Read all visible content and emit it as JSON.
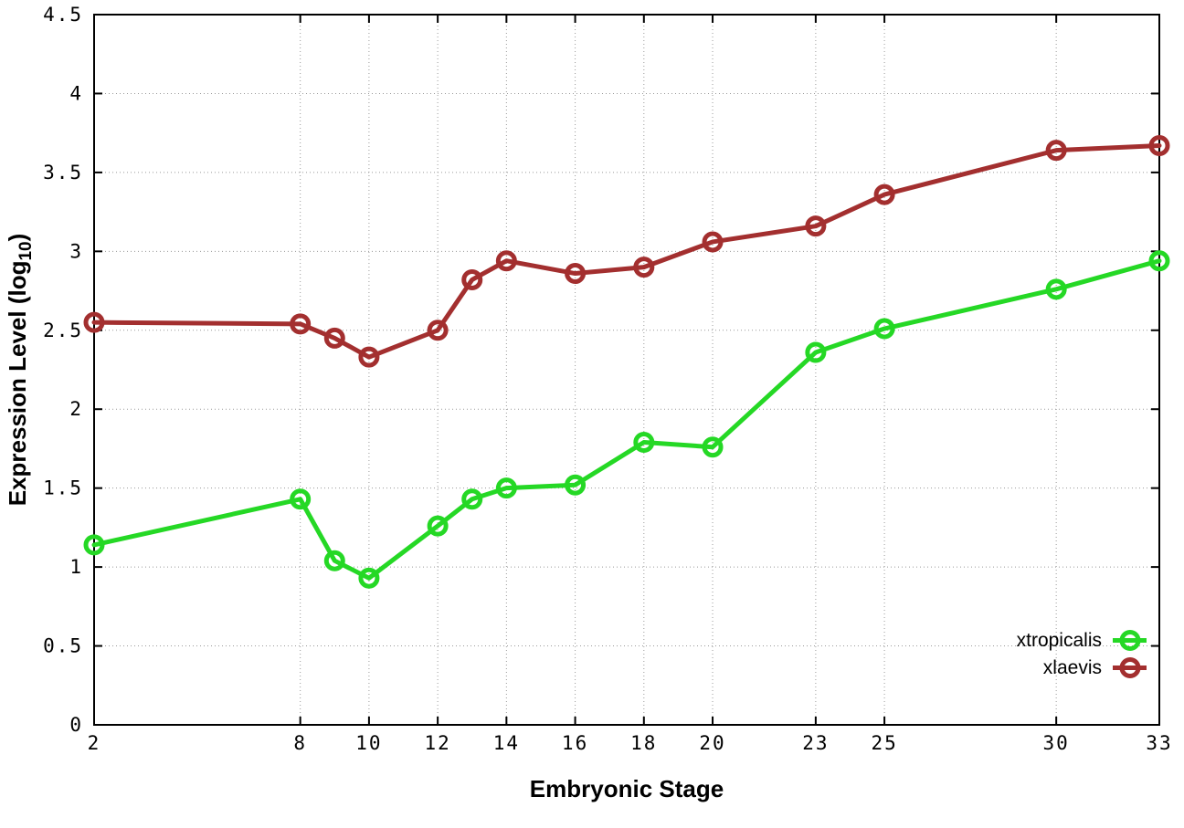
{
  "figure": {
    "background": "#ffffff",
    "border_color": "#000000",
    "grid_color": "#9a9a9a"
  },
  "chart_data": {
    "type": "line",
    "title": "",
    "xlabel": "Embryonic Stage",
    "ylabel_prefix": "Expression Level (log",
    "ylabel_sub": "10",
    "ylabel_suffix": ")",
    "xlim": [
      2,
      33
    ],
    "ylim": [
      0,
      4.5
    ],
    "grid": true,
    "legend_position": "bottom-right",
    "marker": "open-circle",
    "x": [
      2,
      8,
      9,
      10,
      12,
      13,
      14,
      16,
      18,
      20,
      23,
      25,
      30,
      33
    ],
    "x_tick_values": [
      2,
      8,
      10,
      12,
      14,
      16,
      18,
      20,
      23,
      25,
      30,
      33
    ],
    "x_tick_labels": [
      "2",
      "8",
      "10",
      "12",
      "14",
      "16",
      "18",
      "20",
      "23",
      "25",
      "30",
      "33"
    ],
    "y_tick_values": [
      0,
      0.5,
      1,
      1.5,
      2,
      2.5,
      3,
      3.5,
      4,
      4.5
    ],
    "y_tick_labels": [
      "0",
      "0.5",
      "1",
      "1.5",
      "2",
      "2.5",
      "3",
      "3.5",
      "4",
      "4.5"
    ],
    "series": [
      {
        "name": "xtropicalis",
        "color": "#25D825",
        "values": [
          1.14,
          1.43,
          1.04,
          0.93,
          1.26,
          1.43,
          1.5,
          1.52,
          1.79,
          1.76,
          2.36,
          2.51,
          2.76,
          2.94
        ]
      },
      {
        "name": "xlaevis",
        "color": "#A32F2F",
        "values": [
          2.55,
          2.54,
          2.45,
          2.33,
          2.5,
          2.82,
          2.94,
          2.86,
          2.9,
          3.06,
          3.16,
          3.36,
          3.64,
          3.67
        ]
      }
    ]
  }
}
